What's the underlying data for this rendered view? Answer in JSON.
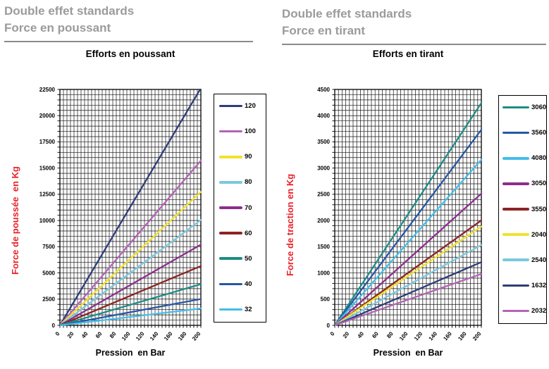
{
  "headers": {
    "left": {
      "line1": "Double effet standards",
      "line2": "Force en poussant"
    },
    "right": {
      "line1": "Double effet standards",
      "line2": "Force en tirant"
    }
  },
  "colors": {
    "axis_title_red": "#e8232a",
    "header_gray": "#9b9b9b",
    "grid": "#151515"
  },
  "chart_data": [
    {
      "type": "line",
      "title": "Efforts en poussant",
      "xlabel": "Pression  en Bar",
      "ylabel": "Force de poussée  en Kg",
      "xlim": [
        0,
        200
      ],
      "ylim": [
        0,
        22500
      ],
      "xticks": [
        0,
        20,
        40,
        60,
        80,
        100,
        120,
        140,
        160,
        180,
        200
      ],
      "yticks": [
        0,
        2500,
        5000,
        7500,
        10000,
        12500,
        15000,
        17500,
        20000,
        22500
      ],
      "grid": true,
      "grid_minor_x_step": 5,
      "grid_minor_y_step": 500,
      "legend_position": "right",
      "x": [
        0,
        200
      ],
      "series": [
        {
          "name": "120",
          "color": "#2e3d78",
          "values": [
            0,
            22620
          ]
        },
        {
          "name": "100",
          "color": "#b464b4",
          "values": [
            0,
            15708
          ]
        },
        {
          "name": "90",
          "color": "#efe32d",
          "values": [
            0,
            12723
          ]
        },
        {
          "name": "80",
          "color": "#7cc8dc",
          "values": [
            0,
            10053
          ]
        },
        {
          "name": "70",
          "color": "#8c2f8c",
          "values": [
            0,
            7697
          ]
        },
        {
          "name": "60",
          "color": "#8c2424",
          "values": [
            0,
            5655
          ]
        },
        {
          "name": "50",
          "color": "#1e8c84",
          "values": [
            0,
            3927
          ]
        },
        {
          "name": "40",
          "color": "#2857a4",
          "values": [
            0,
            2513
          ]
        },
        {
          "name": "32",
          "color": "#44bee8",
          "values": [
            0,
            1608
          ]
        }
      ]
    },
    {
      "type": "line",
      "title": "Efforts en tirant",
      "xlabel": "Pression  en Bar",
      "ylabel": "Force de traction en Kg",
      "xlim": [
        0,
        200
      ],
      "ylim": [
        0,
        4500
      ],
      "xticks": [
        0,
        20,
        40,
        60,
        80,
        100,
        120,
        140,
        160,
        180,
        200
      ],
      "yticks": [
        0,
        500,
        1000,
        1500,
        2000,
        2500,
        3000,
        3500,
        4000,
        4500
      ],
      "grid": true,
      "grid_minor_x_step": 5,
      "grid_minor_y_step": 100,
      "legend_position": "right",
      "x": [
        0,
        200
      ],
      "series": [
        {
          "name": "3060",
          "color": "#1e8c84",
          "values": [
            0,
            4241
          ]
        },
        {
          "name": "3560",
          "color": "#2857a4",
          "values": [
            0,
            3731
          ]
        },
        {
          "name": "4080",
          "color": "#44bee8",
          "values": [
            0,
            3160
          ]
        },
        {
          "name": "3050",
          "color": "#8c2f8c",
          "values": [
            0,
            2513
          ]
        },
        {
          "name": "3550",
          "color": "#8c2424",
          "values": [
            0,
            2003
          ]
        },
        {
          "name": "2040",
          "color": "#efe32d",
          "values": [
            0,
            1885
          ]
        },
        {
          "name": "2540",
          "color": "#7cc8dc",
          "values": [
            0,
            1532
          ]
        },
        {
          "name": "1632",
          "color": "#2e3d78",
          "values": [
            0,
            1206
          ]
        },
        {
          "name": "2032",
          "color": "#b464b4",
          "values": [
            0,
            980
          ]
        }
      ]
    }
  ]
}
